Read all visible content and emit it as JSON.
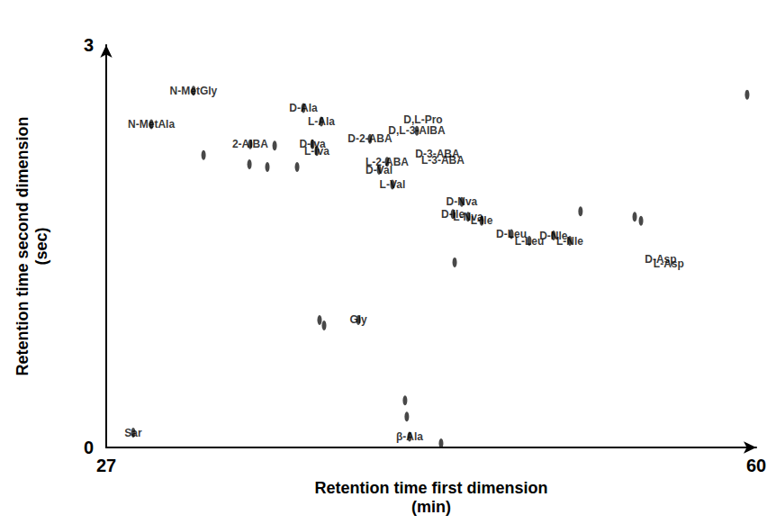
{
  "chart_data": {
    "type": "scatter",
    "xlabel": "Retention time first dimension (min)",
    "ylabel": "Retention time second dimension (sec)",
    "xlim": [
      27,
      60
    ],
    "ylim": [
      0,
      3
    ],
    "xticks": [
      27,
      60
    ],
    "yticks": [
      0,
      3
    ],
    "grid": false,
    "series": [
      {
        "marker": "filled_ellipse",
        "color": "#1a1a1a",
        "x": [
          28.37,
          29.29,
          31.43,
          34.31,
          37.01,
          37.92,
          37.47,
          37.69,
          40.39,
          41.26,
          40.85,
          41.53,
          42.77,
          45.05,
          45.37,
          44.6,
          46.06,
          47.57,
          48.48,
          49.71,
          50.54,
          39.8,
          42.4,
          31.94,
          35.55,
          35.18,
          34.27,
          37.83,
          38.06,
          42.17,
          42.26,
          44.0,
          44.69,
          53.83,
          54.15,
          51.08,
          59.54,
          36.69
        ],
        "y": [
          0.11,
          2.41,
          2.66,
          2.26,
          2.53,
          2.43,
          2.26,
          2.21,
          2.3,
          2.13,
          2.07,
          1.96,
          2.36,
          1.83,
          1.72,
          1.74,
          1.69,
          1.59,
          1.54,
          1.58,
          1.54,
          0.95,
          0.08,
          2.18,
          2.25,
          2.09,
          2.11,
          0.95,
          0.91,
          0.35,
          0.23,
          0.03,
          1.38,
          1.72,
          1.69,
          1.76,
          2.63,
          2.09
        ],
        "labels": [
          "Sar",
          "N-MetAla",
          "N-MetGly",
          "2-AIBA",
          "D-Ala",
          "L-Ala",
          "D-Iva",
          "L-Iva",
          "D-2-ABA",
          "L-2-ABA",
          "D-Val",
          "L-Val",
          "D,L-3-AIBA",
          "D-Nva",
          "L-Nva",
          "D-Ile",
          "L-Ile",
          "D-Leu",
          "L-Leu",
          "D-Nle",
          "L-Nle",
          "Gly",
          "β-Ala",
          null,
          null,
          null,
          null,
          null,
          null,
          null,
          null,
          null,
          null,
          null,
          null,
          null,
          null,
          null
        ]
      },
      {
        "marker": "open_ellipse",
        "color": "#555555",
        "x": [
          43.09,
          43.82,
          44.09,
          55.15,
          55.56
        ],
        "y": [
          2.44,
          2.19,
          2.14,
          1.4,
          1.37
        ],
        "labels": [
          "D,L-Pro",
          "D-3-ABA",
          "L-3-ABA",
          "D-Asp",
          "L-Asp"
        ]
      }
    ]
  }
}
